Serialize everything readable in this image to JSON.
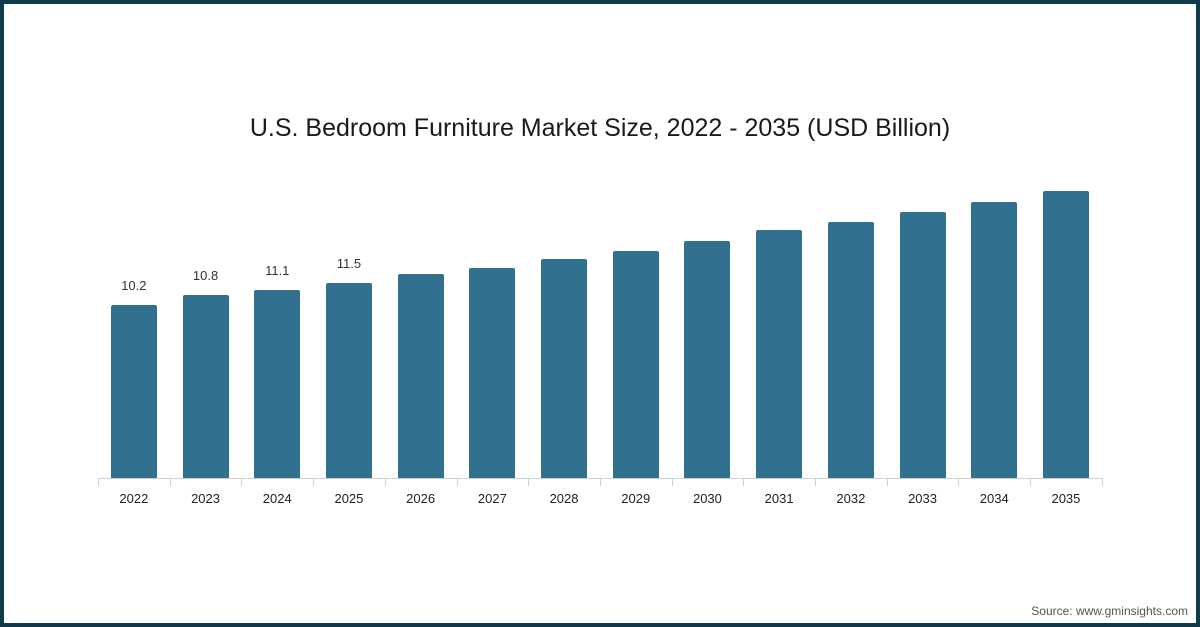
{
  "chart_data": {
    "type": "bar",
    "title": "U.S. Bedroom Furniture Market Size, 2022 - 2035 (USD Billion)",
    "xlabel": "",
    "ylabel": "USD Billion",
    "categories": [
      "2022",
      "2023",
      "2024",
      "2025",
      "2026",
      "2027",
      "2028",
      "2029",
      "2030",
      "2031",
      "2032",
      "2033",
      "2034",
      "2035"
    ],
    "values": [
      10.2,
      10.8,
      11.1,
      11.5,
      12.0,
      12.4,
      12.9,
      13.4,
      14.0,
      14.6,
      15.1,
      15.7,
      16.3,
      16.9
    ],
    "data_labels": [
      "10.2",
      "10.8",
      "11.1",
      "11.5",
      "",
      "",
      "",
      "",
      "",
      "",
      "",
      "",
      "",
      ""
    ],
    "ylim": [
      0,
      18
    ],
    "grid": false,
    "legend": null,
    "bar_color": "#31708e"
  },
  "source": "Source: www.gminsights.com",
  "colors": {
    "border": "#0d3b4a",
    "bar": "#31708e"
  }
}
